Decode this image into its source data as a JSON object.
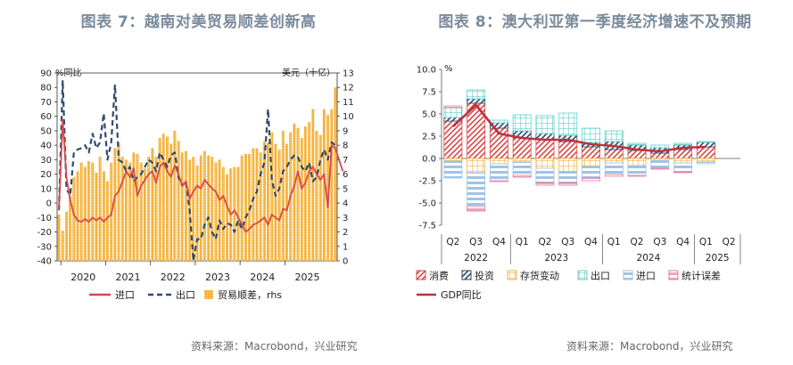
{
  "chart_data": [
    {
      "type": "bar+line",
      "title": "图表 7：越南对美贸易顺差创新高",
      "left_axis_label": "%同比",
      "right_axis_label": "美元（十亿）",
      "ylim_left": [
        -40,
        90
      ],
      "yticks_left": [
        "90",
        "80",
        "70",
        "60",
        "50",
        "40",
        "30",
        "20",
        "10",
        "0",
        "-10",
        "-20",
        "-30",
        "-40"
      ],
      "ylim_right": [
        0,
        13
      ],
      "yticks_right": [
        "13",
        "12",
        "11",
        "10",
        "9",
        "8",
        "7",
        "6",
        "5",
        "4",
        "3",
        "2",
        "1",
        "0"
      ],
      "x_tick_labels": [
        "2020",
        "2021",
        "2022",
        "2023",
        "2024",
        "2025"
      ],
      "start_month": "2019-12",
      "legend": {
        "import": "进口",
        "export": "出口",
        "surplus": "贸易顺差，rhs"
      },
      "series": [
        {
          "name": "贸易顺差，rhs",
          "kind": "bar",
          "axis": "right",
          "color": "#f5b23c",
          "values": [
            3.2,
            2.1,
            3.4,
            4.5,
            5.8,
            6.2,
            6.8,
            6.5,
            6.9,
            6.8,
            6.1,
            7.2,
            6.2,
            5.5,
            6.8,
            7.8,
            8.2,
            7.2,
            7.0,
            6.8,
            7.5,
            7.4,
            6.8,
            6.4,
            7.2,
            7.8,
            7.2,
            8.5,
            8.8,
            8.6,
            8.1,
            9.0,
            8.3,
            7.5,
            7.6,
            7.0,
            7.2,
            6.6,
            7.3,
            7.6,
            7.3,
            7.2,
            6.8,
            7.0,
            6.5,
            6.0,
            6.4,
            6.5,
            6.5,
            7.3,
            7.4,
            7.4,
            7.8,
            7.8,
            7.5,
            8.3,
            8.2,
            8.9,
            8.1,
            7.7,
            9.0,
            8.1,
            8.9,
            9.5,
            9.2,
            8.5,
            9.3,
            9.6,
            10.5,
            9.0,
            8.7,
            10.5,
            10.1,
            10.5,
            12.0
          ]
        },
        {
          "name": "进口",
          "kind": "line",
          "axis": "left",
          "color": "#d94848",
          "values": [
            -5,
            58,
            18,
            2,
            -8,
            -12,
            -13,
            -11,
            -13,
            -10,
            -12,
            -10,
            -13,
            -10,
            -8,
            5,
            8,
            15,
            22,
            18,
            24,
            5,
            12,
            16,
            20,
            22,
            14,
            25,
            28,
            22,
            18,
            26,
            20,
            12,
            15,
            3,
            8,
            12,
            10,
            16,
            13,
            10,
            8,
            2,
            5,
            -2,
            -8,
            -5,
            -10,
            -15,
            -20,
            -18,
            -15,
            -14,
            -12,
            -10,
            -15,
            -8,
            -10,
            -12,
            -4,
            -5,
            5,
            12,
            22,
            10,
            14,
            22,
            25,
            20,
            16,
            20,
            -3,
            40,
            38,
            30,
            22
          ]
        },
        {
          "name": "出口",
          "kind": "line",
          "axis": "left",
          "color": "#2e4a6e",
          "values": [
            -5,
            85,
            10,
            5,
            35,
            37,
            38,
            40,
            35,
            48,
            38,
            42,
            62,
            30,
            42,
            82,
            30,
            28,
            22,
            25,
            15,
            18,
            20,
            25,
            30,
            28,
            22,
            35,
            30,
            25,
            33,
            35,
            18,
            12,
            15,
            -5,
            -40,
            -25,
            -25,
            -15,
            -10,
            -20,
            -25,
            -12,
            -18,
            -14,
            -15,
            -20,
            -12,
            -18,
            -10,
            -5,
            3,
            8,
            20,
            28,
            65,
            16,
            5,
            10,
            22,
            25,
            30,
            33,
            32,
            25,
            22,
            28,
            15,
            18,
            30,
            37,
            30,
            42,
            40
          ]
        }
      ]
    },
    {
      "type": "stacked-bar+line",
      "title": "图表 8：澳大利亚第一季度经济增速不及预期",
      "unit_label": "%",
      "ylim": [
        -7.5,
        10.0
      ],
      "yticks": [
        "10.0",
        "7.5",
        "5.0",
        "2.5",
        "0.0",
        "-2.5",
        "-5.0",
        "-7.5"
      ],
      "quarters": [
        "Q2",
        "Q3",
        "Q4",
        "Q1",
        "Q2",
        "Q3",
        "Q4",
        "Q1",
        "Q2",
        "Q3",
        "Q4",
        "Q1",
        "Q2"
      ],
      "years": [
        "2022",
        "2023",
        "2024",
        "2025"
      ],
      "legend": {
        "consumption": "消费",
        "investment": "投资",
        "inventory": "存货变动",
        "exports": "出口",
        "imports": "进口",
        "discrepancy": "统计误差",
        "gdp": "GDP同比"
      },
      "series": [
        {
          "name": "消费",
          "color": "#d94848",
          "values": [
            4.2,
            6.2,
            3.4,
            2.3,
            2.1,
            1.9,
            1.3,
            1.0,
            0.9,
            0.6,
            1.0,
            1.3,
            null
          ]
        },
        {
          "name": "投资",
          "color": "#2e4a6e",
          "values": [
            0.4,
            0.5,
            0.6,
            0.8,
            0.7,
            0.7,
            0.5,
            0.9,
            0.6,
            0.6,
            0.5,
            0.5,
            null
          ]
        },
        {
          "name": "出口",
          "color": "#7fd8d4",
          "values": [
            1.1,
            1.0,
            0.3,
            1.8,
            2.0,
            2.5,
            1.6,
            1.2,
            0.2,
            0.3,
            0.2,
            0.1,
            null
          ]
        },
        {
          "name": "存货变动",
          "color": "#f5b23c",
          "values": [
            -0.3,
            -1.6,
            -0.6,
            -0.4,
            -1.1,
            -1.5,
            -0.9,
            -0.5,
            -0.8,
            -0.2,
            -0.5,
            -0.4,
            null
          ]
        },
        {
          "name": "进口",
          "color": "#9ec4e6",
          "values": [
            -1.9,
            -3.8,
            -1.9,
            -1.5,
            -1.6,
            -1.2,
            -1.3,
            -1.3,
            -1.1,
            -0.9,
            -1.0,
            -0.2,
            null
          ]
        },
        {
          "name": "统计误差",
          "color": "#f0a4c0",
          "values": [
            0.2,
            -0.5,
            -0.1,
            -0.2,
            -0.3,
            -0.3,
            -0.3,
            -0.2,
            -0.1,
            -0.1,
            -0.1,
            0.0,
            null
          ]
        }
      ],
      "line": {
        "name": "GDP同比",
        "color": "#c0303a",
        "values": [
          3.6,
          6.0,
          2.8,
          2.3,
          2.1,
          2.1,
          1.6,
          1.4,
          1.0,
          0.8,
          1.2,
          1.3,
          null
        ]
      }
    }
  ],
  "sources": {
    "left": "资料来源：Macrobond，兴业研究",
    "right": "资料来源：Macrobond，兴业研究"
  }
}
